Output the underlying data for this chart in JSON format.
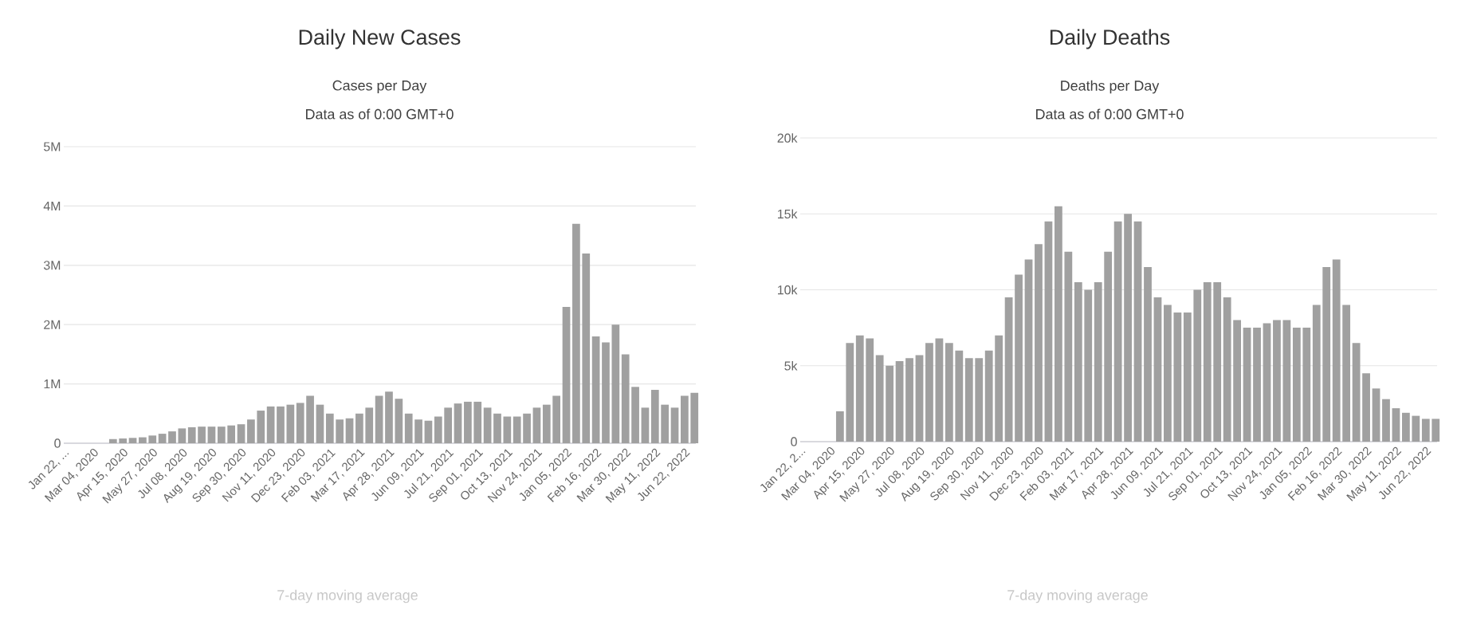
{
  "chart_data": [
    {
      "type": "bar",
      "title": "Daily New Cases",
      "subtitle": "Cases per Day",
      "annotations": [
        "Data as of 0:00 GMT+0",
        "7-day moving average"
      ],
      "x": [
        "2020-01-22",
        "2020-02-05",
        "2020-02-19",
        "2020-03-04",
        "2020-03-18",
        "2020-04-01",
        "2020-04-15",
        "2020-04-29",
        "2020-05-13",
        "2020-05-27",
        "2020-06-10",
        "2020-06-24",
        "2020-07-08",
        "2020-07-22",
        "2020-08-05",
        "2020-08-19",
        "2020-09-02",
        "2020-09-16",
        "2020-09-30",
        "2020-10-14",
        "2020-10-28",
        "2020-11-11",
        "2020-11-25",
        "2020-12-09",
        "2020-12-23",
        "2021-01-06",
        "2021-01-20",
        "2021-02-03",
        "2021-02-17",
        "2021-03-03",
        "2021-03-17",
        "2021-03-31",
        "2021-04-14",
        "2021-04-28",
        "2021-05-12",
        "2021-05-26",
        "2021-06-09",
        "2021-06-23",
        "2021-07-07",
        "2021-07-21",
        "2021-08-04",
        "2021-08-18",
        "2021-09-01",
        "2021-09-15",
        "2021-09-29",
        "2021-10-13",
        "2021-10-27",
        "2021-11-10",
        "2021-11-24",
        "2021-12-08",
        "2021-12-22",
        "2022-01-05",
        "2022-01-19",
        "2022-02-02",
        "2022-02-16",
        "2022-03-02",
        "2022-03-16",
        "2022-03-30",
        "2022-04-13",
        "2022-04-27",
        "2022-05-11",
        "2022-05-25",
        "2022-06-08",
        "2022-06-22",
        "2022-07-06"
      ],
      "values": [
        0,
        0,
        0,
        0,
        0,
        70000,
        80000,
        90000,
        100000,
        130000,
        160000,
        200000,
        250000,
        270000,
        280000,
        280000,
        280000,
        300000,
        320000,
        400000,
        550000,
        620000,
        620000,
        650000,
        680000,
        800000,
        650000,
        500000,
        400000,
        420000,
        500000,
        600000,
        800000,
        870000,
        750000,
        500000,
        400000,
        380000,
        450000,
        600000,
        670000,
        700000,
        700000,
        600000,
        500000,
        450000,
        450000,
        500000,
        600000,
        650000,
        800000,
        2300000,
        3700000,
        3200000,
        1800000,
        1700000,
        2000000,
        1500000,
        950000,
        600000,
        900000,
        650000,
        600000,
        800000,
        850000
      ],
      "color": "#a0a0a0",
      "grid": "y",
      "xlim": [
        "2020-01-22",
        "2022-07-08"
      ],
      "xticks": [
        {
          "value": "2020-01-22",
          "label": "Jan 22, ..."
        },
        {
          "value": "2020-03-04",
          "label": "Mar 04, 2020"
        },
        {
          "value": "2020-04-15",
          "label": "Apr 15, 2020"
        },
        {
          "value": "2020-05-27",
          "label": "May 27, 2020"
        },
        {
          "value": "2020-07-08",
          "label": "Jul 08, 2020"
        },
        {
          "value": "2020-08-19",
          "label": "Aug 19, 2020"
        },
        {
          "value": "2020-09-30",
          "label": "Sep 30, 2020"
        },
        {
          "value": "2020-11-11",
          "label": "Nov 11, 2020"
        },
        {
          "value": "2020-12-23",
          "label": "Dec 23, 2020"
        },
        {
          "value": "2021-02-03",
          "label": "Feb 03, 2021"
        },
        {
          "value": "2021-03-17",
          "label": "Mar 17, 2021"
        },
        {
          "value": "2021-04-28",
          "label": "Apr 28, 2021"
        },
        {
          "value": "2021-06-09",
          "label": "Jun 09, 2021"
        },
        {
          "value": "2021-07-21",
          "label": "Jul 21, 2021"
        },
        {
          "value": "2021-09-01",
          "label": "Sep 01, 2021"
        },
        {
          "value": "2021-10-13",
          "label": "Oct 13, 2021"
        },
        {
          "value": "2021-11-24",
          "label": "Nov 24, 2021"
        },
        {
          "value": "2022-01-05",
          "label": "Jan 05, 2022"
        },
        {
          "value": "2022-02-16",
          "label": "Feb 16, 2022"
        },
        {
          "value": "2022-03-30",
          "label": "Mar 30, 2022"
        },
        {
          "value": "2022-05-11",
          "label": "May 11, 2022"
        },
        {
          "value": "2022-06-22",
          "label": "Jun 22, 2022"
        }
      ],
      "ylim": [
        0,
        5000000
      ],
      "yticks": [
        0,
        {
          "value": 1000000,
          "label": "1M"
        },
        {
          "value": 2000000,
          "label": "2M"
        },
        {
          "value": 3000000,
          "label": "3M"
        },
        {
          "value": 4000000,
          "label": "4M"
        },
        {
          "value": 5000000,
          "label": "5M"
        }
      ]
    },
    {
      "type": "bar",
      "title": "Daily Deaths",
      "subtitle": "Deaths per Day",
      "annotations": [
        "Data as of 0:00 GMT+0",
        "7-day moving average"
      ],
      "x": [
        "2020-01-22",
        "2020-02-05",
        "2020-02-19",
        "2020-03-04",
        "2020-03-18",
        "2020-04-01",
        "2020-04-15",
        "2020-04-29",
        "2020-05-13",
        "2020-05-27",
        "2020-06-10",
        "2020-06-24",
        "2020-07-08",
        "2020-07-22",
        "2020-08-05",
        "2020-08-19",
        "2020-09-02",
        "2020-09-16",
        "2020-09-30",
        "2020-10-14",
        "2020-10-28",
        "2020-11-11",
        "2020-11-25",
        "2020-12-09",
        "2020-12-23",
        "2021-01-06",
        "2021-01-20",
        "2021-02-03",
        "2021-02-17",
        "2021-03-03",
        "2021-03-17",
        "2021-03-31",
        "2021-04-14",
        "2021-04-28",
        "2021-05-12",
        "2021-05-26",
        "2021-06-09",
        "2021-06-23",
        "2021-07-07",
        "2021-07-21",
        "2021-08-04",
        "2021-08-18",
        "2021-09-01",
        "2021-09-15",
        "2021-09-29",
        "2021-10-13",
        "2021-10-27",
        "2021-11-10",
        "2021-11-24",
        "2021-12-08",
        "2021-12-22",
        "2022-01-05",
        "2022-01-19",
        "2022-02-02",
        "2022-02-16",
        "2022-03-02",
        "2022-03-16",
        "2022-03-30",
        "2022-04-13",
        "2022-04-27",
        "2022-05-11",
        "2022-05-25",
        "2022-06-08",
        "2022-06-22",
        "2022-07-06"
      ],
      "values": [
        0,
        0,
        0,
        0,
        2000,
        6500,
        7000,
        6800,
        5700,
        5000,
        5300,
        5500,
        5700,
        6500,
        6800,
        6500,
        6000,
        5500,
        5500,
        6000,
        7000,
        9500,
        11000,
        12000,
        13000,
        14500,
        15500,
        12500,
        10500,
        10000,
        10500,
        12500,
        14500,
        15000,
        14500,
        11500,
        9500,
        9000,
        8500,
        8500,
        10000,
        10500,
        10500,
        9500,
        8000,
        7500,
        7500,
        7800,
        8000,
        8000,
        7500,
        7500,
        9000,
        11500,
        12000,
        9000,
        6500,
        4500,
        3500,
        2800,
        2200,
        1900,
        1700,
        1500,
        1500
      ],
      "color": "#a0a0a0",
      "grid": "y",
      "xlim": [
        "2020-01-22",
        "2022-07-08"
      ],
      "xticks": [
        {
          "value": "2020-01-22",
          "label": "Jan 22, 2..."
        },
        {
          "value": "2020-03-04",
          "label": "Mar 04, 2020"
        },
        {
          "value": "2020-04-15",
          "label": "Apr 15, 2020"
        },
        {
          "value": "2020-05-27",
          "label": "May 27, 2020"
        },
        {
          "value": "2020-07-08",
          "label": "Jul 08, 2020"
        },
        {
          "value": "2020-08-19",
          "label": "Aug 19, 2020"
        },
        {
          "value": "2020-09-30",
          "label": "Sep 30, 2020"
        },
        {
          "value": "2020-11-11",
          "label": "Nov 11, 2020"
        },
        {
          "value": "2020-12-23",
          "label": "Dec 23, 2020"
        },
        {
          "value": "2021-02-03",
          "label": "Feb 03, 2021"
        },
        {
          "value": "2021-03-17",
          "label": "Mar 17, 2021"
        },
        {
          "value": "2021-04-28",
          "label": "Apr 28, 2021"
        },
        {
          "value": "2021-06-09",
          "label": "Jun 09, 2021"
        },
        {
          "value": "2021-07-21",
          "label": "Jul 21, 2021"
        },
        {
          "value": "2021-09-01",
          "label": "Sep 01, 2021"
        },
        {
          "value": "2021-10-13",
          "label": "Oct 13, 2021"
        },
        {
          "value": "2021-11-24",
          "label": "Nov 24, 2021"
        },
        {
          "value": "2022-01-05",
          "label": "Jan 05, 2022"
        },
        {
          "value": "2022-02-16",
          "label": "Feb 16, 2022"
        },
        {
          "value": "2022-03-30",
          "label": "Mar 30, 2022"
        },
        {
          "value": "2022-05-11",
          "label": "May 11, 2022"
        },
        {
          "value": "2022-06-22",
          "label": "Jun 22, 2022"
        }
      ],
      "ylim": [
        0,
        20000
      ],
      "yticks": [
        0,
        {
          "value": 5000,
          "label": "5k"
        },
        {
          "value": 10000,
          "label": "10k"
        },
        {
          "value": 15000,
          "label": "15k"
        },
        {
          "value": 20000,
          "label": "20k"
        }
      ]
    }
  ]
}
